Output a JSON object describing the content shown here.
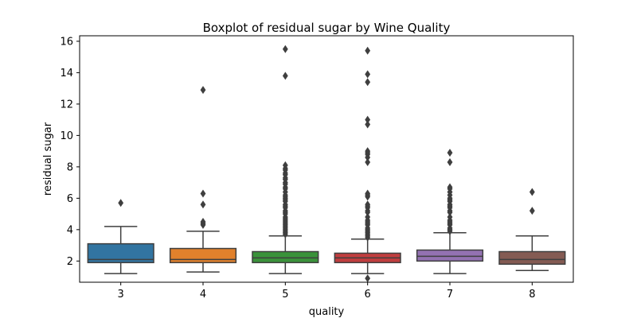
{
  "chart_data": {
    "type": "box",
    "title": "Boxplot of residual sugar by Wine Quality",
    "xlabel": "quality",
    "ylabel": "residual sugar",
    "ylim": [
      0.65,
      16.35
    ],
    "yticks": [
      2,
      4,
      6,
      8,
      10,
      12,
      14,
      16
    ],
    "grid": false,
    "legend": "none",
    "categories": [
      "3",
      "4",
      "5",
      "6",
      "7",
      "8"
    ],
    "boxes": [
      {
        "category": "3",
        "color": "#3274a1",
        "whisker_low": 1.2,
        "q1": 1.9,
        "median": 2.1,
        "q3": 3.1,
        "whisker_high": 4.2,
        "outliers": [
          5.7
        ]
      },
      {
        "category": "4",
        "color": "#e1812c",
        "whisker_low": 1.3,
        "q1": 1.9,
        "median": 2.1,
        "q3": 2.8,
        "whisker_high": 3.9,
        "outliers": [
          4.3,
          4.4,
          4.5,
          5.6,
          6.3,
          12.9
        ]
      },
      {
        "category": "5",
        "color": "#3a923a",
        "whisker_low": 1.2,
        "q1": 1.9,
        "median": 2.2,
        "q3": 2.6,
        "whisker_high": 3.6,
        "outliers": [
          3.7,
          3.8,
          3.9,
          4.0,
          4.1,
          4.2,
          4.3,
          4.4,
          4.5,
          4.6,
          4.7,
          4.8,
          5.0,
          5.1,
          5.2,
          5.4,
          5.5,
          5.6,
          5.8,
          5.9,
          6.0,
          6.1,
          6.2,
          6.4,
          6.6,
          6.7,
          6.9,
          7.0,
          7.2,
          7.3,
          7.5,
          7.6,
          7.8,
          7.9,
          8.1,
          13.8,
          15.5
        ]
      },
      {
        "category": "6",
        "color": "#c03d3e",
        "whisker_low": 1.2,
        "q1": 1.9,
        "median": 2.2,
        "q3": 2.5,
        "whisker_high": 3.4,
        "outliers": [
          0.9,
          3.5,
          3.6,
          3.7,
          3.8,
          3.9,
          4.0,
          4.1,
          4.3,
          4.4,
          4.5,
          4.6,
          4.8,
          5.1,
          5.2,
          5.4,
          5.5,
          5.6,
          6.1,
          6.2,
          6.3,
          8.3,
          8.6,
          8.8,
          8.9,
          9.0,
          10.7,
          11.0,
          13.4,
          13.9,
          15.4
        ]
      },
      {
        "category": "7",
        "color": "#9372b2",
        "whisker_low": 1.2,
        "q1": 2.0,
        "median": 2.3,
        "q3": 2.7,
        "whisker_high": 3.8,
        "outliers": [
          3.9,
          4.0,
          4.1,
          4.3,
          4.4,
          4.5,
          4.6,
          4.8,
          5.1,
          5.2,
          5.4,
          5.5,
          5.6,
          5.8,
          5.9,
          6.0,
          6.2,
          6.4,
          6.6,
          6.7,
          8.3,
          8.9
        ]
      },
      {
        "category": "8",
        "color": "#845b53",
        "whisker_low": 1.4,
        "q1": 1.8,
        "median": 2.1,
        "q3": 2.6,
        "whisker_high": 3.6,
        "outliers": [
          5.2,
          6.4
        ]
      }
    ]
  }
}
